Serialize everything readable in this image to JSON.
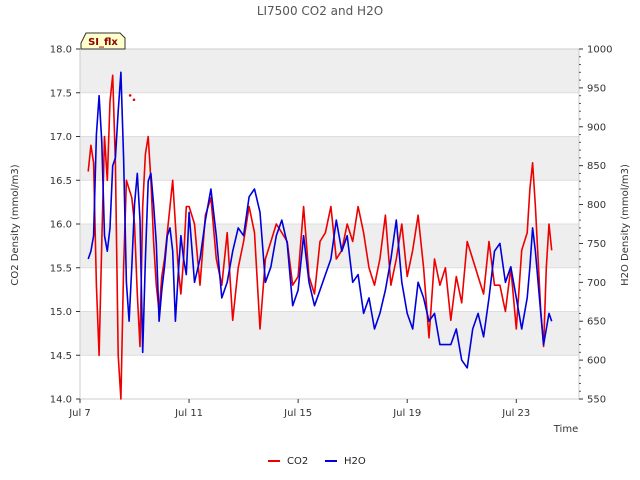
{
  "chart_data": {
    "type": "line",
    "title": "LI7500 CO2 and H2O",
    "badge": "SI_flx",
    "xlabel": "Time",
    "ylabel": "CO2 Density (mmol/m3)",
    "y2label": "H2O Density (mmol/m3)",
    "xlim": [
      7.0,
      25.3
    ],
    "ylim": [
      14.0,
      18.0
    ],
    "y2lim": [
      550,
      1000
    ],
    "x_ticks": [
      7,
      11,
      15,
      19,
      23
    ],
    "x_tick_labels": [
      "Jul 7",
      "Jul 11",
      "Jul 15",
      "Jul 19",
      "Jul 23"
    ],
    "y_ticks": [
      "14.0",
      "14.5",
      "15.0",
      "15.5",
      "16.0",
      "16.5",
      "17.0",
      "17.5",
      "18.0"
    ],
    "y2_ticks": [
      "550",
      "600",
      "650",
      "700",
      "750",
      "800",
      "850",
      "900",
      "950",
      "1000"
    ],
    "bands": [
      [
        17.5,
        18.0
      ],
      [
        16.5,
        17.0
      ],
      [
        15.5,
        16.0
      ],
      [
        14.5,
        15.0
      ]
    ],
    "legend": [
      "CO2",
      "H2O"
    ],
    "colors": {
      "CO2": "#ee0000",
      "H2O": "#0000dd",
      "band": "#eeeeee",
      "badge_bg": "#ffffcc"
    },
    "series": [
      {
        "name": "CO2",
        "axis": "left",
        "x": [
          7.3,
          7.4,
          7.5,
          7.6,
          7.7,
          7.8,
          7.9,
          8.0,
          8.1,
          8.2,
          8.3,
          8.4,
          8.5,
          8.6,
          8.7,
          8.8,
          8.9,
          9.0,
          9.1,
          9.2,
          9.3,
          9.4,
          9.5,
          9.6,
          9.7,
          9.8,
          9.9,
          10.0,
          10.1,
          10.2,
          10.3,
          10.4,
          10.5,
          10.6,
          10.7,
          10.8,
          10.9,
          11.0,
          11.2,
          11.4,
          11.6,
          11.8,
          12.0,
          12.2,
          12.4,
          12.6,
          12.8,
          13.0,
          13.2,
          13.4,
          13.6,
          13.8,
          14.0,
          14.2,
          14.4,
          14.6,
          14.8,
          15.0,
          15.2,
          15.4,
          15.6,
          15.8,
          16.0,
          16.2,
          16.4,
          16.6,
          16.8,
          17.0,
          17.2,
          17.4,
          17.6,
          17.8,
          18.0,
          18.2,
          18.4,
          18.6,
          18.8,
          19.0,
          19.2,
          19.4,
          19.6,
          19.8,
          20.0,
          20.2,
          20.4,
          20.6,
          20.8,
          21.0,
          21.2,
          21.4,
          21.6,
          21.8,
          22.0,
          22.2,
          22.4,
          22.6,
          22.8,
          23.0,
          23.2,
          23.4,
          23.5,
          23.6,
          23.7,
          23.8,
          23.9,
          24.0,
          24.1,
          24.2,
          24.3
        ],
        "y": [
          16.6,
          16.9,
          16.7,
          15.3,
          14.5,
          15.8,
          17.0,
          16.5,
          17.4,
          17.7,
          16.7,
          14.5,
          14.0,
          15.5,
          16.5,
          16.4,
          16.3,
          16.0,
          15.2,
          14.6,
          16.2,
          16.8,
          17.0,
          16.5,
          15.8,
          15.3,
          15.0,
          15.4,
          15.6,
          15.9,
          16.2,
          16.5,
          16.0,
          15.5,
          15.2,
          15.6,
          16.2,
          16.2,
          16.0,
          15.3,
          16.1,
          16.3,
          15.6,
          15.3,
          15.9,
          14.9,
          15.5,
          15.8,
          16.2,
          15.9,
          14.8,
          15.6,
          15.8,
          16.0,
          15.9,
          15.8,
          15.3,
          15.4,
          16.2,
          15.4,
          15.2,
          15.8,
          15.9,
          16.2,
          15.6,
          15.7,
          16.0,
          15.8,
          16.2,
          15.9,
          15.5,
          15.3,
          15.6,
          16.1,
          15.3,
          15.6,
          16.0,
          15.4,
          15.7,
          16.1,
          15.5,
          14.7,
          15.6,
          15.3,
          15.5,
          14.9,
          15.4,
          15.1,
          15.8,
          15.6,
          15.4,
          15.2,
          15.8,
          15.3,
          15.3,
          15.0,
          15.5,
          14.8,
          15.7,
          15.9,
          16.4,
          16.7,
          16.2,
          15.6,
          15.0,
          14.6,
          15.5,
          16.0,
          15.7
        ],
        "dot_x": [
          8.84,
          8.98
        ],
        "dot_y": [
          17.47,
          17.42
        ]
      },
      {
        "name": "H2O",
        "axis": "right",
        "x": [
          7.3,
          7.4,
          7.5,
          7.6,
          7.7,
          7.8,
          7.9,
          8.0,
          8.1,
          8.2,
          8.3,
          8.4,
          8.5,
          8.6,
          8.7,
          8.8,
          8.9,
          9.0,
          9.1,
          9.2,
          9.3,
          9.4,
          9.5,
          9.6,
          9.7,
          9.8,
          9.9,
          10.0,
          10.1,
          10.2,
          10.3,
          10.4,
          10.5,
          10.6,
          10.7,
          10.8,
          10.9,
          11.0,
          11.2,
          11.4,
          11.6,
          11.8,
          12.0,
          12.2,
          12.4,
          12.6,
          12.8,
          13.0,
          13.2,
          13.4,
          13.6,
          13.8,
          14.0,
          14.2,
          14.4,
          14.6,
          14.8,
          15.0,
          15.2,
          15.4,
          15.6,
          15.8,
          16.0,
          16.2,
          16.4,
          16.6,
          16.8,
          17.0,
          17.2,
          17.4,
          17.6,
          17.8,
          18.0,
          18.2,
          18.4,
          18.6,
          18.8,
          19.0,
          19.2,
          19.4,
          19.6,
          19.8,
          20.0,
          20.2,
          20.4,
          20.6,
          20.8,
          21.0,
          21.2,
          21.4,
          21.6,
          21.8,
          22.0,
          22.2,
          22.4,
          22.6,
          22.8,
          23.0,
          23.2,
          23.4,
          23.5,
          23.6,
          23.7,
          23.8,
          23.9,
          24.0,
          24.1,
          24.2,
          24.3
        ],
        "y": [
          730,
          740,
          760,
          890,
          940,
          880,
          760,
          740,
          770,
          850,
          860,
          920,
          970,
          860,
          700,
          650,
          720,
          800,
          840,
          780,
          610,
          730,
          830,
          840,
          800,
          750,
          650,
          690,
          720,
          760,
          770,
          740,
          650,
          710,
          760,
          730,
          710,
          790,
          700,
          730,
          780,
          820,
          760,
          680,
          700,
          740,
          770,
          760,
          810,
          820,
          790,
          700,
          720,
          760,
          780,
          750,
          670,
          690,
          760,
          700,
          670,
          690,
          710,
          730,
          780,
          740,
          760,
          700,
          710,
          660,
          680,
          640,
          660,
          690,
          730,
          780,
          700,
          660,
          640,
          700,
          680,
          650,
          660,
          620,
          620,
          620,
          640,
          600,
          590,
          640,
          660,
          630,
          680,
          740,
          750,
          700,
          720,
          680,
          640,
          680,
          720,
          770,
          740,
          700,
          660,
          620,
          640,
          660,
          650
        ],
        "dot_x": [],
        "dot_y": []
      }
    ]
  }
}
